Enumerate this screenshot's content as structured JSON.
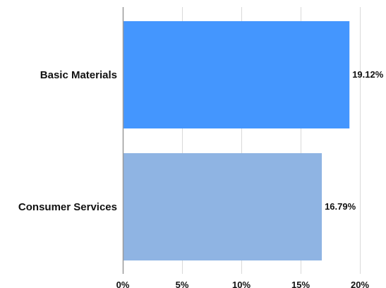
{
  "chart_data": {
    "type": "bar",
    "orientation": "horizontal",
    "categories": [
      "Basic Materials",
      "Consumer Services"
    ],
    "values": [
      19.12,
      16.79
    ],
    "data_labels": [
      "19.12%",
      "16.79%"
    ],
    "colors": [
      "#4496fe",
      "#8fb4e3"
    ],
    "xlim": [
      0,
      20
    ],
    "x_ticks": [
      0,
      5,
      10,
      15,
      20
    ],
    "x_tick_labels": [
      "0%",
      "5%",
      "10%",
      "15%",
      "20%"
    ],
    "grid": true,
    "legend": "none"
  }
}
